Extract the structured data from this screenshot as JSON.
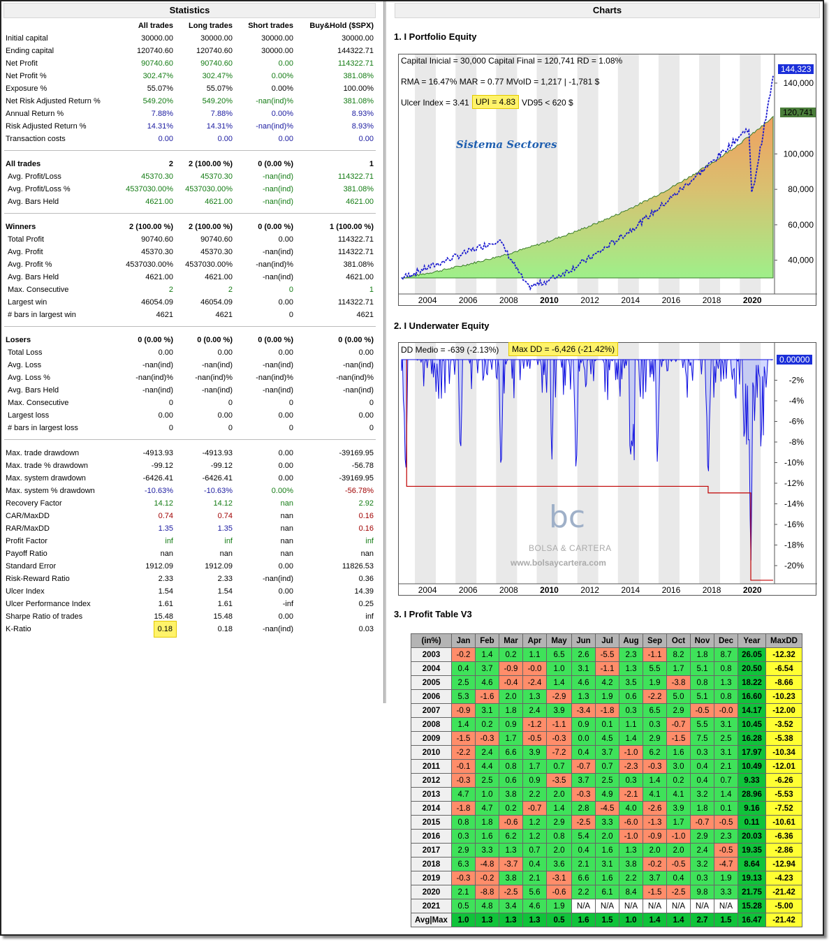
{
  "left_title": "Statistics",
  "right_title": "Charts",
  "stats": {
    "columns": [
      "All trades",
      "Long trades",
      "Short trades",
      "Buy&Hold ($SPX)"
    ],
    "groups": [
      {
        "rows": [
          {
            "label": "Initial capital",
            "v": [
              "30000.00",
              "30000.00",
              "30000.00",
              "30000.00"
            ]
          },
          {
            "label": "Ending capital",
            "v": [
              "120740.60",
              "120740.60",
              "30000.00",
              "144322.71"
            ]
          },
          {
            "label": "Net Profit",
            "v": [
              "90740.60",
              "90740.60",
              "0.00",
              "114322.71"
            ],
            "cls": "g"
          },
          {
            "label": "Net Profit %",
            "v": [
              "302.47%",
              "302.47%",
              "0.00%",
              "381.08%"
            ],
            "cls": "g"
          },
          {
            "label": "Exposure %",
            "v": [
              "55.07%",
              "55.07%",
              "0.00%",
              "100.00%"
            ]
          },
          {
            "label": "Net Risk Adjusted Return %",
            "v": [
              "549.20%",
              "549.20%",
              "-nan(ind)%",
              "381.08%"
            ],
            "cls": "g"
          },
          {
            "label": "Annual Return %",
            "v": [
              "7.88%",
              "7.88%",
              "0.00%",
              "8.93%"
            ],
            "cls": "b"
          },
          {
            "label": "Risk Adjusted Return %",
            "v": [
              "14.31%",
              "14.31%",
              "-nan(ind)%",
              "8.93%"
            ],
            "cls": "b"
          },
          {
            "label": "Transaction costs",
            "v": [
              "0.00",
              "0.00",
              "0.00",
              "0.00"
            ],
            "cls": "b"
          }
        ]
      },
      {
        "rows": [
          {
            "label": "All trades",
            "v": [
              "2",
              "2 (100.00 %)",
              "0 (0.00 %)",
              "1"
            ],
            "head": true
          },
          {
            "label": "Avg. Profit/Loss",
            "v": [
              "45370.30",
              "45370.30",
              "-nan(ind)",
              "114322.71"
            ],
            "cls": "g",
            "sub": true
          },
          {
            "label": "Avg. Profit/Loss %",
            "v": [
              "4537030.00%",
              "4537030.00%",
              "-nan(ind)",
              "381.08%"
            ],
            "cls": "g",
            "sub": true
          },
          {
            "label": "Avg. Bars Held",
            "v": [
              "4621.00",
              "4621.00",
              "-nan(ind)",
              "4621.00"
            ],
            "cls": "g",
            "sub": true
          }
        ]
      },
      {
        "rows": [
          {
            "label": "Winners",
            "v": [
              "2 (100.00 %)",
              "2 (100.00 %)",
              "0 (0.00 %)",
              "1 (100.00 %)"
            ],
            "head": true
          },
          {
            "label": "Total Profit",
            "v": [
              "90740.60",
              "90740.60",
              "0.00",
              "114322.71"
            ],
            "sub": true
          },
          {
            "label": "Avg. Profit",
            "v": [
              "45370.30",
              "45370.30",
              "-nan(ind)",
              "114322.71"
            ],
            "sub": true
          },
          {
            "label": "Avg. Profit %",
            "v": [
              "4537030.00%",
              "4537030.00%",
              "-nan(ind)%",
              "381.08%"
            ],
            "sub": true
          },
          {
            "label": "Avg. Bars Held",
            "v": [
              "4621.00",
              "4621.00",
              "-nan(ind)",
              "4621.00"
            ],
            "sub": true
          },
          {
            "label": "Max. Consecutive",
            "v": [
              "2",
              "2",
              "0",
              "1"
            ],
            "cls": "g",
            "sub": true
          },
          {
            "label": "Largest win",
            "v": [
              "46054.09",
              "46054.09",
              "0.00",
              "114322.71"
            ],
            "sub": true
          },
          {
            "label": "# bars in largest win",
            "v": [
              "4621",
              "4621",
              "0",
              "4621"
            ],
            "sub": true
          }
        ]
      },
      {
        "rows": [
          {
            "label": "Losers",
            "v": [
              "0 (0.00 %)",
              "0 (0.00 %)",
              "0 (0.00 %)",
              "0 (0.00 %)"
            ],
            "head": true
          },
          {
            "label": "Total Loss",
            "v": [
              "0.00",
              "0.00",
              "0.00",
              "0.00"
            ],
            "sub": true
          },
          {
            "label": "Avg. Loss",
            "v": [
              "-nan(ind)",
              "-nan(ind)",
              "-nan(ind)",
              "-nan(ind)"
            ],
            "sub": true
          },
          {
            "label": "Avg. Loss %",
            "v": [
              "-nan(ind)%",
              "-nan(ind)%",
              "-nan(ind)%",
              "-nan(ind)%"
            ],
            "sub": true
          },
          {
            "label": "Avg. Bars Held",
            "v": [
              "-nan(ind)",
              "-nan(ind)",
              "-nan(ind)",
              "-nan(ind)"
            ],
            "sub": true
          },
          {
            "label": "Max. Consecutive",
            "v": [
              "0",
              "0",
              "0",
              "0"
            ],
            "sub": true
          },
          {
            "label": "Largest loss",
            "v": [
              "0.00",
              "0.00",
              "0.00",
              "0.00"
            ],
            "sub": true
          },
          {
            "label": "# bars in largest loss",
            "v": [
              "0",
              "0",
              "0",
              "0"
            ],
            "sub": true
          }
        ]
      },
      {
        "rows": [
          {
            "label": "Max. trade drawdown",
            "v": [
              "-4913.93",
              "-4913.93",
              "0.00",
              "-39169.95"
            ]
          },
          {
            "label": "Max. trade % drawdown",
            "v": [
              "-99.12",
              "-99.12",
              "0.00",
              "-56.78"
            ]
          },
          {
            "label": "Max. system drawdown",
            "v": [
              "-6426.41",
              "-6426.41",
              "0.00",
              "-39169.95"
            ]
          },
          {
            "label": "Max. system % drawdown",
            "v": [
              "-10.63%",
              "-10.63%",
              "0.00%",
              "-56.78%"
            ],
            "cls": "b",
            "cls3": "g",
            "cls4": "r"
          },
          {
            "label": "Recovery Factor",
            "v": [
              "14.12",
              "14.12",
              "nan",
              "2.92"
            ],
            "cls": "g"
          },
          {
            "label": "CAR/MaxDD",
            "v": [
              "0.74",
              "0.74",
              "nan",
              "0.16"
            ],
            "cls": "r",
            "cls3": ""
          },
          {
            "label": "RAR/MaxDD",
            "v": [
              "1.35",
              "1.35",
              "nan",
              "0.16"
            ],
            "cls": "b",
            "cls3": "",
            "cls4": "r"
          },
          {
            "label": "Profit Factor",
            "v": [
              "inf",
              "inf",
              "nan",
              "inf"
            ],
            "cls": "g",
            "cls3": ""
          },
          {
            "label": "Payoff Ratio",
            "v": [
              "nan",
              "nan",
              "nan",
              "nan"
            ]
          },
          {
            "label": "Standard Error",
            "v": [
              "1912.09",
              "1912.09",
              "0.00",
              "11826.53"
            ]
          },
          {
            "label": "Risk-Reward Ratio",
            "v": [
              "2.33",
              "2.33",
              "-nan(ind)",
              "0.36"
            ]
          },
          {
            "label": "Ulcer Index",
            "v": [
              "1.54",
              "1.54",
              "0.00",
              "14.39"
            ]
          },
          {
            "label": "Ulcer Performance Index",
            "v": [
              "1.61",
              "1.61",
              "-inf",
              "0.25"
            ]
          },
          {
            "label": "Sharpe Ratio of trades",
            "v": [
              "15.48",
              "15.48",
              "0.00",
              "inf"
            ]
          },
          {
            "label": "K-Ratio",
            "v": [
              "0.18",
              "0.18",
              "-nan(ind)",
              "0.03"
            ],
            "hl": true
          }
        ]
      }
    ]
  },
  "equity": {
    "title": "1. I Portfolio Equity",
    "info1": "Capital Inicial = 30,000  Capital Final = 120,741   RD = 1.08%",
    "info2": "RMA = 16.47%   MAR = 0.77   MVoID = 1,217 | -1,781 $",
    "info3a": "Ulcer Index = 3.41",
    "info3b": "UPI = 4.83",
    "info3c": "VD95 < 620 $",
    "watermark": "Sistema Sectores",
    "tag_bh": "144,323",
    "tag_sys": "120,741",
    "y_ticks": [
      "140,000",
      "100,000",
      "80,000",
      "60,000",
      "40,000"
    ],
    "x_ticks": [
      "2004",
      "2006",
      "2008",
      "2010",
      "2012",
      "2014",
      "2016",
      "2018",
      "2020"
    ]
  },
  "underwater": {
    "title": "2. I Underwater Equity",
    "info_a": "DD Medio = -639 (-2.13%)",
    "info_b": "Max DD = -6,426 (-21.42%)",
    "tag": "0.00000",
    "y_ticks": [
      "-2%",
      "-4%",
      "-6%",
      "-8%",
      "-10%",
      "-12%",
      "-14%",
      "-16%",
      "-18%",
      "-20%"
    ],
    "x_ticks": [
      "2004",
      "2006",
      "2008",
      "2010",
      "2012",
      "2014",
      "2016",
      "2018",
      "2020"
    ],
    "logo_text": "BOLSA & CARTERA",
    "logo_url": "www.bolsaycartera.com",
    "logo_mark": "bc"
  },
  "profit_table": {
    "title": "3. I Profit Table V3",
    "headers": [
      "(in%)",
      "Jan",
      "Feb",
      "Mar",
      "Apr",
      "May",
      "Jun",
      "Jul",
      "Aug",
      "Sep",
      "Oct",
      "Nov",
      "Dec",
      "Year",
      "MaxDD"
    ],
    "rows": [
      [
        "2003",
        "-0.2",
        "1.4",
        "0.2",
        "1.1",
        "6.5",
        "2.6",
        "-5.5",
        "2.3",
        "-1.1",
        "8.2",
        "1.8",
        "8.7",
        "26.05",
        "-12.32"
      ],
      [
        "2004",
        "0.4",
        "3.7",
        "-0.9",
        "-0.0",
        "1.0",
        "3.1",
        "-1.1",
        "1.3",
        "5.5",
        "1.7",
        "5.1",
        "0.8",
        "20.50",
        "-6.54"
      ],
      [
        "2005",
        "2.5",
        "4.6",
        "-0.4",
        "-2.4",
        "1.4",
        "4.6",
        "4.2",
        "3.5",
        "1.9",
        "-3.8",
        "0.8",
        "1.3",
        "18.22",
        "-8.66"
      ],
      [
        "2006",
        "5.3",
        "-1.6",
        "2.0",
        "1.3",
        "-2.9",
        "1.3",
        "1.9",
        "0.6",
        "-2.2",
        "5.0",
        "5.1",
        "0.8",
        "16.60",
        "-10.23"
      ],
      [
        "2007",
        "-0.9",
        "3.1",
        "1.8",
        "2.4",
        "3.9",
        "-3.4",
        "-1.8",
        "0.3",
        "6.5",
        "2.9",
        "-0.5",
        "-0.0",
        "14.17",
        "-12.00"
      ],
      [
        "2008",
        "1.4",
        "0.2",
        "0.9",
        "-1.2",
        "-1.1",
        "0.9",
        "0.1",
        "1.1",
        "0.3",
        "-0.7",
        "5.5",
        "3.1",
        "10.45",
        "-3.52"
      ],
      [
        "2009",
        "-1.5",
        "-0.3",
        "1.7",
        "-0.5",
        "-0.3",
        "0.0",
        "4.5",
        "1.4",
        "2.9",
        "-1.5",
        "7.5",
        "2.5",
        "16.28",
        "-5.38"
      ],
      [
        "2010",
        "-2.2",
        "2.4",
        "6.6",
        "3.9",
        "-7.2",
        "0.4",
        "3.7",
        "-1.0",
        "6.2",
        "1.6",
        "0.3",
        "3.1",
        "17.97",
        "-10.34"
      ],
      [
        "2011",
        "-0.1",
        "4.4",
        "0.8",
        "1.7",
        "0.7",
        "-0.7",
        "0.7",
        "-2.3",
        "-0.3",
        "3.0",
        "0.4",
        "2.1",
        "10.49",
        "-12.01"
      ],
      [
        "2012",
        "-0.3",
        "2.5",
        "0.6",
        "0.9",
        "-3.5",
        "3.7",
        "2.5",
        "0.3",
        "1.4",
        "0.2",
        "0.4",
        "0.7",
        "9.33",
        "-6.26"
      ],
      [
        "2013",
        "4.7",
        "1.0",
        "3.8",
        "2.2",
        "2.0",
        "-0.3",
        "4.9",
        "-2.1",
        "4.1",
        "4.1",
        "3.2",
        "1.4",
        "28.96",
        "-5.53"
      ],
      [
        "2014",
        "-1.8",
        "4.7",
        "0.2",
        "-0.7",
        "1.4",
        "2.8",
        "-4.5",
        "4.0",
        "-2.6",
        "3.9",
        "1.8",
        "0.1",
        "9.16",
        "-7.52"
      ],
      [
        "2015",
        "0.8",
        "1.8",
        "-0.6",
        "1.2",
        "2.9",
        "-2.5",
        "3.3",
        "-6.0",
        "-1.3",
        "1.7",
        "-0.7",
        "-0.5",
        "0.11",
        "-10.61"
      ],
      [
        "2016",
        "0.3",
        "1.6",
        "6.2",
        "1.2",
        "0.8",
        "5.4",
        "2.0",
        "-1.0",
        "-0.9",
        "-1.0",
        "2.9",
        "2.3",
        "20.03",
        "-6.36"
      ],
      [
        "2017",
        "2.9",
        "3.3",
        "1.3",
        "0.7",
        "2.0",
        "0.4",
        "1.6",
        "1.3",
        "2.0",
        "2.0",
        "2.4",
        "-0.5",
        "19.35",
        "-2.86"
      ],
      [
        "2018",
        "6.3",
        "-4.8",
        "-3.7",
        "0.4",
        "3.6",
        "2.1",
        "3.1",
        "3.8",
        "-0.2",
        "-0.5",
        "3.2",
        "-4.7",
        "8.64",
        "-12.94"
      ],
      [
        "2019",
        "-0.3",
        "-0.2",
        "3.8",
        "2.1",
        "-3.1",
        "6.6",
        "1.6",
        "2.2",
        "3.7",
        "0.4",
        "0.3",
        "1.9",
        "19.13",
        "-4.23"
      ],
      [
        "2020",
        "2.1",
        "-8.8",
        "-2.5",
        "5.6",
        "-0.6",
        "2.2",
        "6.1",
        "8.4",
        "-1.5",
        "-2.5",
        "9.8",
        "3.3",
        "21.75",
        "-21.42"
      ],
      [
        "2021",
        "0.5",
        "4.8",
        "3.4",
        "4.6",
        "1.9",
        "N/A",
        "N/A",
        "N/A",
        "N/A",
        "N/A",
        "N/A",
        "N/A",
        "15.28",
        "-5.00"
      ],
      [
        "Avg|Max",
        "1.0",
        "1.3",
        "1.3",
        "1.3",
        "0.5",
        "1.6",
        "1.5",
        "1.0",
        "1.4",
        "1.4",
        "2.7",
        "1.5",
        "16.47",
        "-21.42"
      ]
    ]
  },
  "colors": {
    "pos": "#3fe25a",
    "neg": "#ff8d6a",
    "year": "#10c33a",
    "maxdd": "#ffff33",
    "highlight": "#fff36a"
  }
}
